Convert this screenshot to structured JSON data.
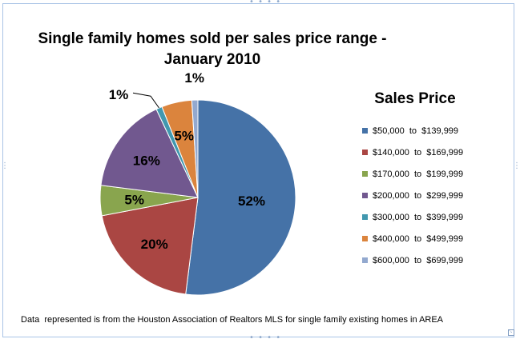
{
  "chart_data": {
    "type": "pie",
    "title_lines": [
      "Single family homes sold per sales price range -",
      "January  2010"
    ],
    "legend_title": "Sales Price",
    "legend_position": "right",
    "slices": [
      {
        "name": "$50,000  to  $139,999",
        "value": 52,
        "label": "52%",
        "color": "#4572a7"
      },
      {
        "name": "$140,000  to  $169,999",
        "value": 20,
        "label": "20%",
        "color": "#aa4643"
      },
      {
        "name": "$170,000  to  $199,999",
        "value": 5,
        "label": "5%",
        "color": "#89a54e"
      },
      {
        "name": "$200,000  to  $299,999",
        "value": 16,
        "label": "16%",
        "color": "#71588f"
      },
      {
        "name": "$300,000  to  $399,999",
        "value": 1,
        "label": "1%",
        "color": "#4198af"
      },
      {
        "name": "$400,000  to  $499,999",
        "value": 5,
        "label": "5%",
        "color": "#db843d"
      },
      {
        "name": "$600,000  to  $699,999",
        "value": 1,
        "label": "1%",
        "color": "#93a9cf"
      }
    ],
    "footnote": "Data  represented is from the Houston Association of Realtors MLS for single family existing homes in AREA"
  },
  "frame": {
    "handle_glyph": "• • • •",
    "corner_glyph": "⤡",
    "border_color": "#a9c4e6"
  }
}
